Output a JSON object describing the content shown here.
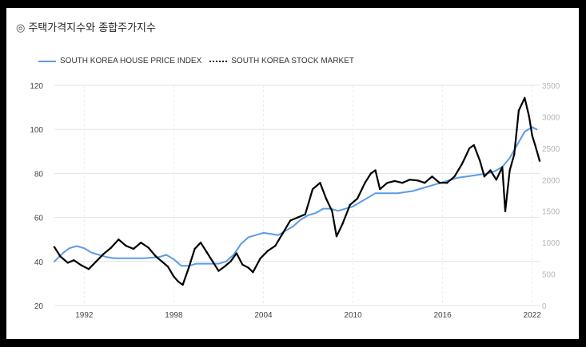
{
  "title": "주택가격지수와 종합주가지수",
  "title_icon": "target-icon",
  "colors": {
    "house": "#5b9be6",
    "stock": "#000000",
    "grid": "#e3e3e3"
  },
  "chart_data": {
    "type": "line",
    "title": "주택가격지수와 종합주가지수",
    "legend_position": "top-left",
    "grid": true,
    "x_ticks": [
      "1992",
      "1998",
      "2004",
      "2010",
      "2016",
      "2022"
    ],
    "xlim": [
      1990,
      2022.5
    ],
    "y_left": {
      "ticks": [
        "120",
        "100",
        "80",
        "60",
        "40",
        "20"
      ],
      "range": [
        20,
        120
      ]
    },
    "y_right": {
      "ticks": [
        "3500",
        "3000",
        "2500",
        "2000",
        "1500",
        "1000",
        "500",
        "0"
      ],
      "range": [
        0,
        3500
      ]
    },
    "series": [
      {
        "name": "SOUTH KOREA HOUSE PRICE INDEX",
        "axis": "left",
        "style": "solid",
        "x": [
          1990,
          1990.6,
          1991,
          1991.5,
          1992,
          1992.5,
          1993,
          1993.5,
          1994,
          1995,
          1996,
          1997,
          1997.5,
          1998,
          1998.5,
          1999,
          1999.5,
          2000,
          2000.5,
          2001,
          2001.5,
          2002,
          2002.5,
          2003,
          2003.5,
          2004,
          2004.5,
          2005,
          2005.5,
          2006,
          2006.5,
          2007,
          2007.5,
          2008,
          2008.5,
          2009,
          2009.5,
          2010,
          2010.5,
          2011,
          2011.5,
          2012,
          2013,
          2014,
          2015,
          2016,
          2017,
          2018,
          2019,
          2019.5,
          2020,
          2020.5,
          2021,
          2021.5,
          2022,
          2022.3
        ],
        "y": [
          40,
          44,
          46,
          47,
          46,
          44,
          43,
          42,
          41.5,
          41.5,
          41.5,
          42,
          43,
          41,
          38,
          38,
          39,
          39,
          39,
          39,
          40,
          43,
          48,
          51,
          52,
          53,
          52.5,
          52,
          54,
          56,
          59,
          61,
          62,
          64,
          64,
          63,
          64,
          65,
          67,
          69,
          71,
          71,
          71,
          72,
          74,
          76,
          78,
          79,
          80,
          81,
          83,
          87,
          93,
          99,
          101,
          100
        ]
      },
      {
        "name": "SOUTH KOREA STOCK MARKET",
        "axis": "right",
        "style": "dotted",
        "x": [
          1990,
          1990.4,
          1990.9,
          1991.3,
          1991.8,
          1992.3,
          1992.8,
          1993.3,
          1993.8,
          1994.3,
          1994.8,
          1995.3,
          1995.8,
          1996.3,
          1996.8,
          1997.2,
          1997.6,
          1998.0,
          1998.3,
          1998.6,
          1999.0,
          1999.4,
          1999.8,
          2000.2,
          2000.6,
          2001.0,
          2001.4,
          2001.8,
          2002.2,
          2002.6,
          2003.0,
          2003.3,
          2003.8,
          2004.3,
          2004.8,
          2005.3,
          2005.8,
          2006.3,
          2006.8,
          2007.3,
          2007.8,
          2008.2,
          2008.6,
          2008.9,
          2009.3,
          2009.8,
          2010.3,
          2010.8,
          2011.2,
          2011.5,
          2011.8,
          2012.3,
          2012.8,
          2013.3,
          2013.8,
          2014.3,
          2014.8,
          2015.3,
          2015.8,
          2016.3,
          2016.8,
          2017.3,
          2017.8,
          2018.1,
          2018.5,
          2018.8,
          2019.2,
          2019.6,
          2020.0,
          2020.2,
          2020.5,
          2020.8,
          2021.1,
          2021.5,
          2021.8,
          2022.0,
          2022.2,
          2022.5
        ],
        "y": [
          930,
          780,
          680,
          720,
          640,
          580,
          700,
          820,
          920,
          1050,
          950,
          900,
          1000,
          920,
          780,
          700,
          620,
          460,
          380,
          330,
          600,
          900,
          1000,
          850,
          700,
          550,
          620,
          700,
          830,
          650,
          600,
          530,
          750,
          870,
          950,
          1150,
          1350,
          1400,
          1450,
          1850,
          1950,
          1700,
          1500,
          1100,
          1300,
          1600,
          1700,
          1950,
          2100,
          2150,
          1850,
          1950,
          1980,
          1950,
          2000,
          1990,
          1950,
          2050,
          1950,
          1950,
          2050,
          2250,
          2500,
          2550,
          2300,
          2050,
          2150,
          2000,
          2200,
          1500,
          2150,
          2400,
          3100,
          3300,
          3000,
          2700,
          2550,
          2300
        ]
      }
    ]
  }
}
